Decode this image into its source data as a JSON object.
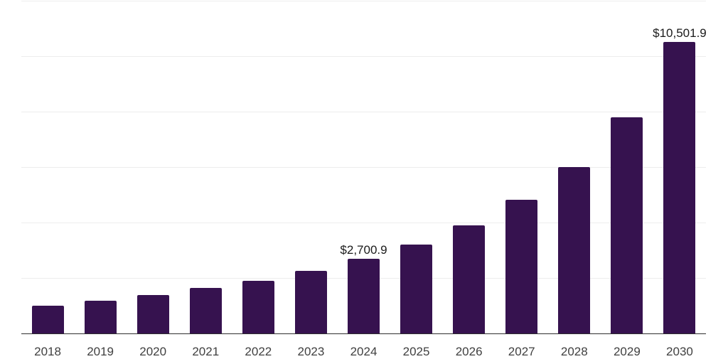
{
  "chart_data": {
    "type": "bar",
    "title": "",
    "xlabel": "",
    "ylabel": "",
    "categories": [
      "2018",
      "2019",
      "2020",
      "2021",
      "2022",
      "2023",
      "2024",
      "2025",
      "2026",
      "2027",
      "2028",
      "2029",
      "2030"
    ],
    "values": [
      1010,
      1190,
      1390,
      1650,
      1890,
      2250,
      2700.9,
      3210,
      3890,
      4810,
      6010,
      7800,
      10501.9
    ],
    "value_labels": [
      {
        "category": "2024",
        "text": "$2,700.9"
      },
      {
        "category": "2030",
        "text": "$10,501.9"
      }
    ],
    "ylim": [
      0,
      12000
    ],
    "gridline_interval": 2000,
    "grid": true,
    "legend": false,
    "colors": {
      "bar": "#36124F",
      "gridline": "#ededed",
      "axis_line": "#2f2f2f",
      "tick_label": "#404040",
      "value_label": "#1a1a1a",
      "background": "#ffffff"
    }
  }
}
